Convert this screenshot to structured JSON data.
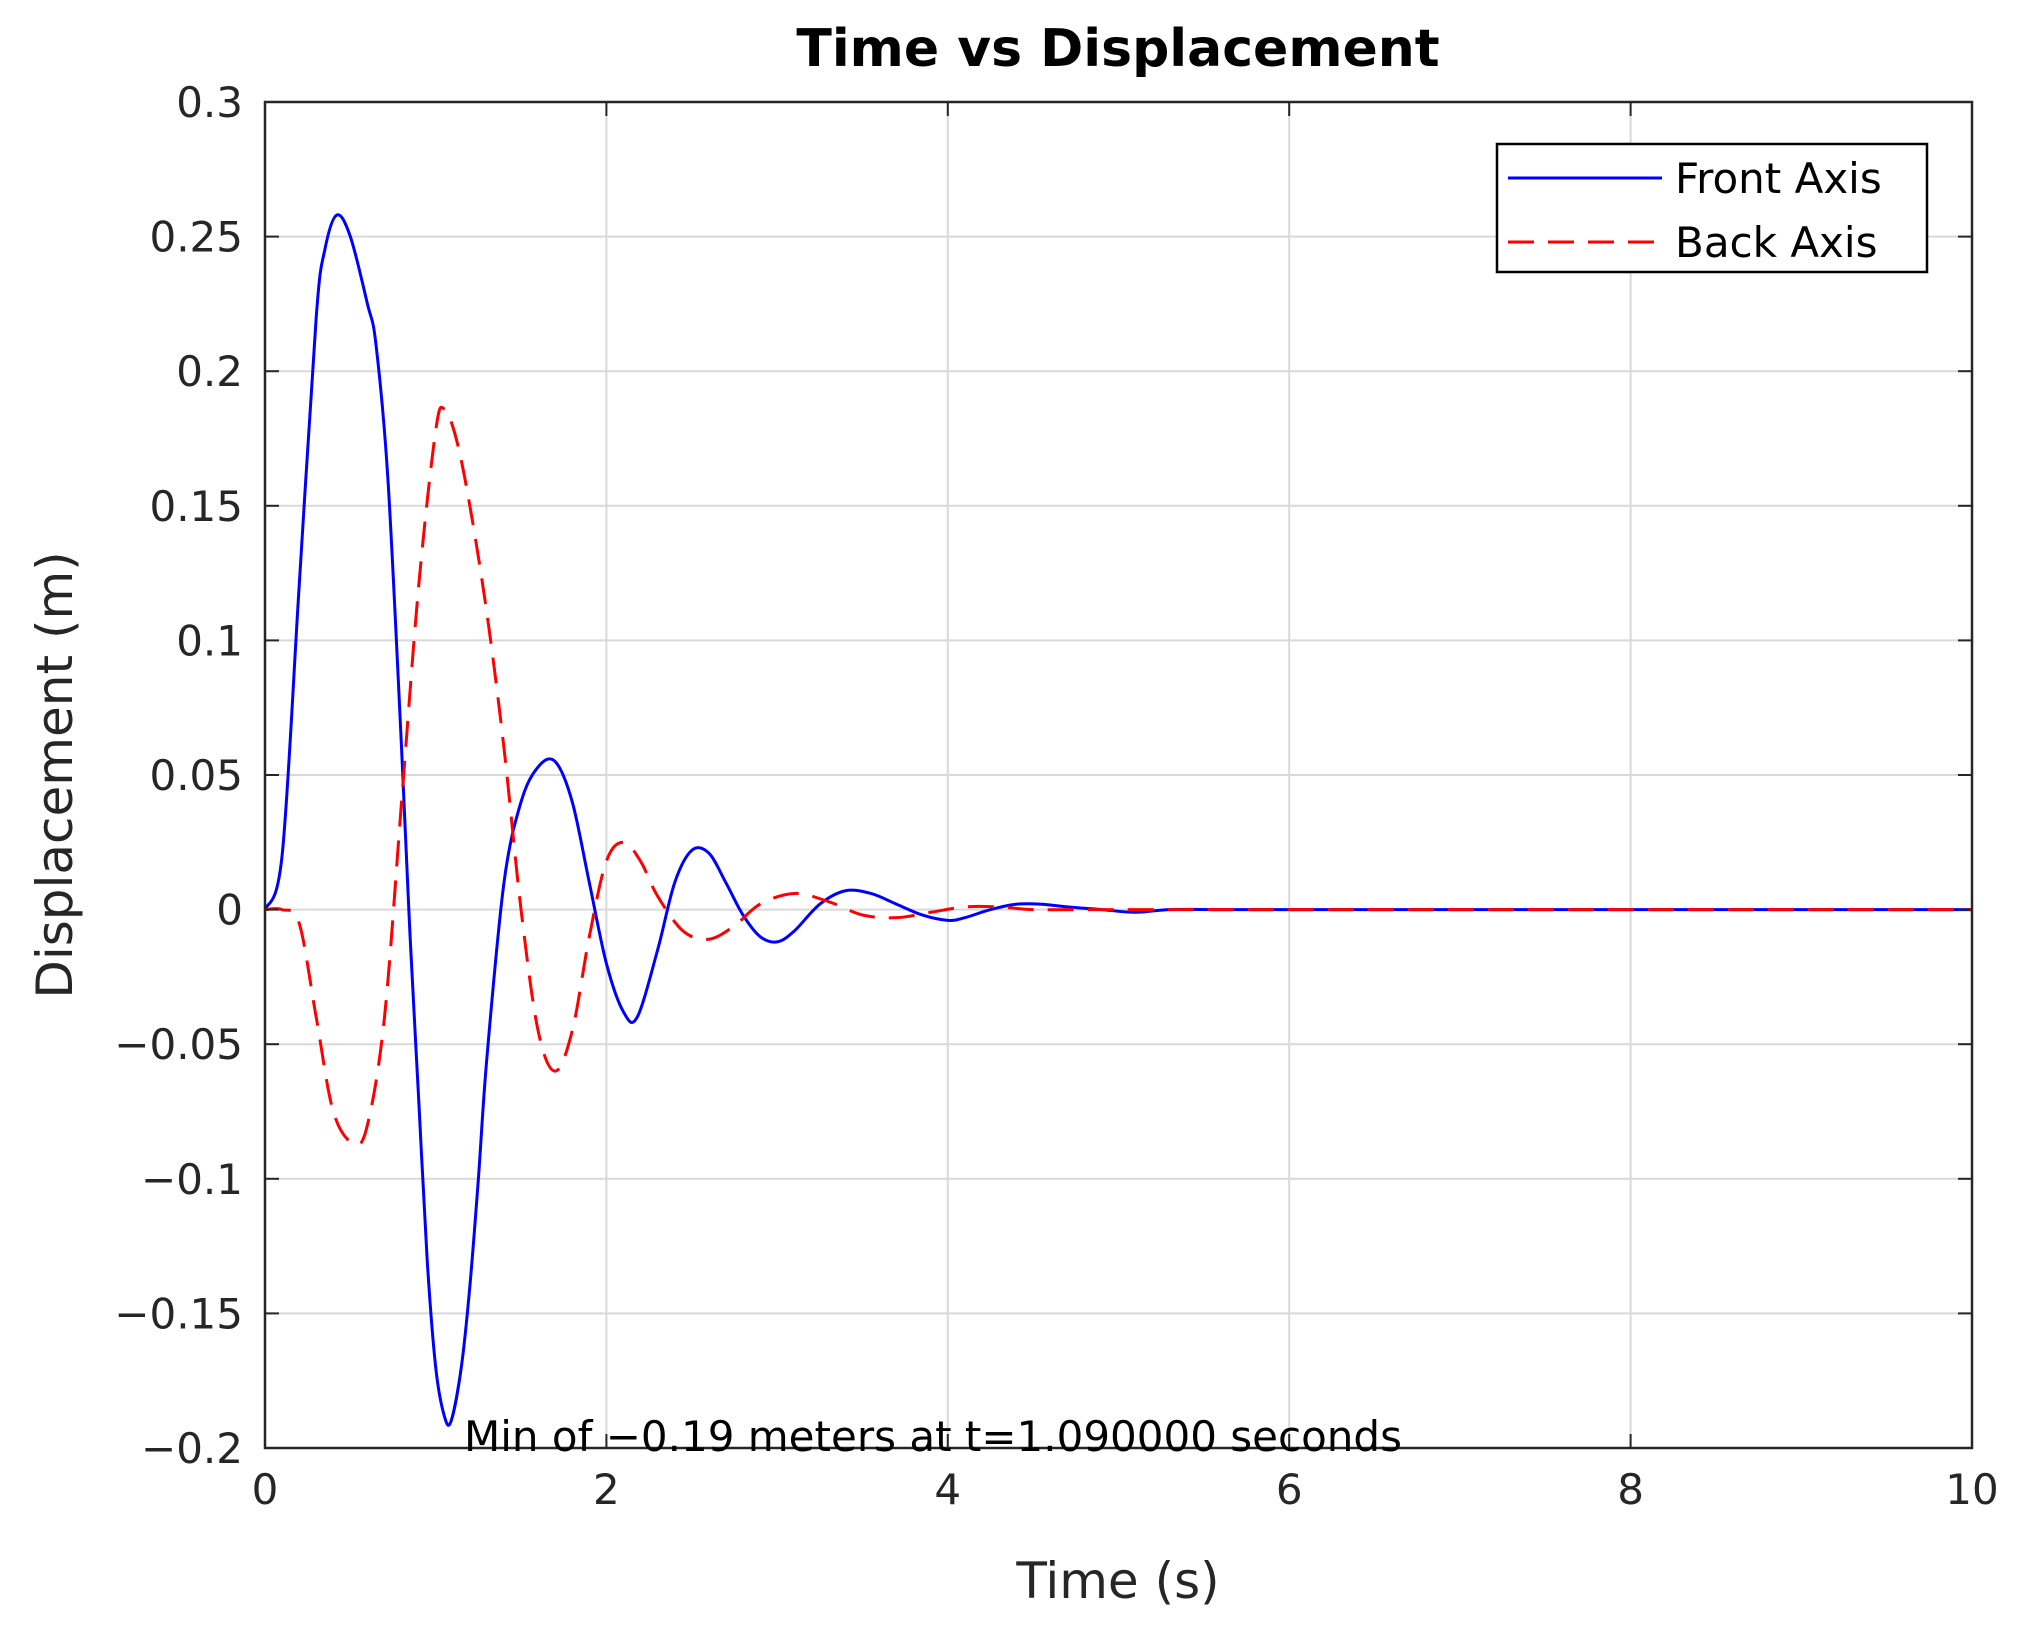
{
  "chart_data": {
    "type": "line",
    "title": "Time vs Displacement",
    "xlabel": "Time (s)",
    "ylabel": "Displacement (m)",
    "xlim": [
      0,
      10
    ],
    "ylim": [
      -0.2,
      0.3
    ],
    "xticks": [
      0,
      2,
      4,
      6,
      8,
      10
    ],
    "xtick_labels": [
      "0",
      "2",
      "4",
      "6",
      "8",
      "10"
    ],
    "yticks": [
      -0.2,
      -0.15,
      -0.1,
      -0.05,
      0,
      0.05,
      0.1,
      0.15,
      0.2,
      0.25,
      0.3
    ],
    "ytick_labels": [
      "−0.2",
      "−0.15",
      "−0.1",
      "−0.05",
      "0",
      "0.05",
      "0.1",
      "0.15",
      "0.2",
      "0.25",
      "0.3"
    ],
    "grid": true,
    "legend_position": "top-right",
    "annotation": "Min of −0.19 meters at t=1.090000 seconds",
    "series": [
      {
        "name": "Front Axis",
        "color": "#0000ff",
        "style": "solid",
        "x": [
          0,
          0.1,
          0.2,
          0.3,
          0.35,
          0.42,
          0.5,
          0.6,
          0.65,
          0.72,
          0.8,
          0.85,
          0.9,
          0.95,
          1.0,
          1.05,
          1.09,
          1.15,
          1.2,
          1.25,
          1.3,
          1.4,
          1.5,
          1.6,
          1.7,
          1.8,
          1.9,
          2.0,
          2.1,
          2.18,
          2.3,
          2.4,
          2.5,
          2.6,
          2.7,
          2.8,
          2.9,
          3.0,
          3.1,
          3.25,
          3.4,
          3.55,
          3.7,
          3.85,
          4.0,
          4.1,
          4.25,
          4.4,
          4.55,
          4.7,
          4.9,
          5.1,
          5.3,
          5.6,
          6.0,
          7.0,
          8.0,
          9.0,
          10.0
        ],
        "values": [
          0,
          0.02,
          0.12,
          0.22,
          0.245,
          0.258,
          0.25,
          0.225,
          0.21,
          0.16,
          0.06,
          -0.01,
          -0.07,
          -0.13,
          -0.17,
          -0.188,
          -0.19,
          -0.17,
          -0.14,
          -0.1,
          -0.055,
          0.01,
          0.04,
          0.053,
          0.055,
          0.04,
          0.01,
          -0.02,
          -0.038,
          -0.04,
          -0.015,
          0.01,
          0.022,
          0.021,
          0.01,
          -0.002,
          -0.01,
          -0.012,
          -0.008,
          0.002,
          0.007,
          0.006,
          0.002,
          -0.002,
          -0.004,
          -0.003,
          0.0,
          0.002,
          0.002,
          0.001,
          0.0,
          -0.001,
          0.0,
          0.0,
          0.0,
          0.0,
          0.0,
          0.0,
          0.0
        ]
      },
      {
        "name": "Back Axis",
        "color": "#ff0000",
        "style": "dashed",
        "x": [
          0,
          0.1,
          0.2,
          0.3,
          0.4,
          0.52,
          0.6,
          0.7,
          0.8,
          0.9,
          1.0,
          1.05,
          1.12,
          1.2,
          1.3,
          1.4,
          1.5,
          1.6,
          1.7,
          1.8,
          1.9,
          2.0,
          2.1,
          2.2,
          2.3,
          2.45,
          2.6,
          2.75,
          2.9,
          3.1,
          3.3,
          3.5,
          3.7,
          3.9,
          4.1,
          4.3,
          4.5,
          4.8,
          5.2,
          5.6,
          6.0,
          7.0,
          8.0,
          9.0,
          10.0
        ],
        "values": [
          0,
          0.0,
          -0.005,
          -0.04,
          -0.075,
          -0.087,
          -0.08,
          -0.04,
          0.04,
          0.12,
          0.178,
          0.186,
          0.175,
          0.15,
          0.11,
          0.06,
          0.0,
          -0.045,
          -0.06,
          -0.045,
          -0.01,
          0.018,
          0.025,
          0.018,
          0.005,
          -0.008,
          -0.011,
          -0.006,
          0.002,
          0.006,
          0.003,
          -0.002,
          -0.003,
          -0.001,
          0.001,
          0.001,
          0.0,
          0.0,
          0.0,
          0.0,
          0.0,
          0.0,
          0.0,
          0.0,
          0.0
        ]
      }
    ]
  }
}
